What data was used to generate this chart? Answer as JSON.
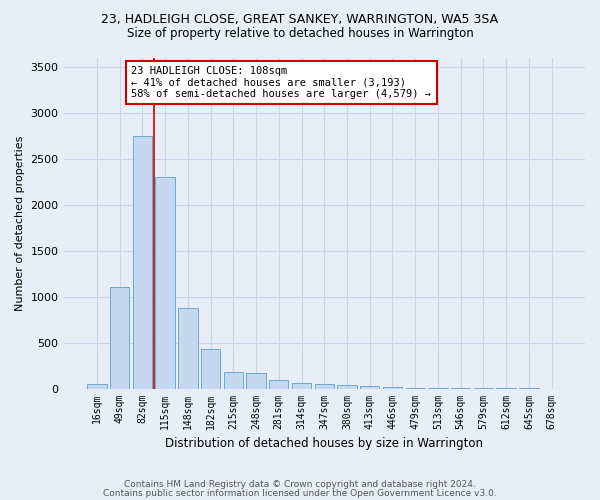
{
  "title": "23, HADLEIGH CLOSE, GREAT SANKEY, WARRINGTON, WA5 3SA",
  "subtitle": "Size of property relative to detached houses in Warrington",
  "xlabel": "Distribution of detached houses by size in Warrington",
  "ylabel": "Number of detached properties",
  "footer_line1": "Contains HM Land Registry data © Crown copyright and database right 2024.",
  "footer_line2": "Contains public sector information licensed under the Open Government Licence v3.0.",
  "bin_labels": [
    "16sqm",
    "49sqm",
    "82sqm",
    "115sqm",
    "148sqm",
    "182sqm",
    "215sqm",
    "248sqm",
    "281sqm",
    "314sqm",
    "347sqm",
    "380sqm",
    "413sqm",
    "446sqm",
    "479sqm",
    "513sqm",
    "546sqm",
    "579sqm",
    "612sqm",
    "645sqm",
    "678sqm"
  ],
  "bar_values": [
    50,
    1100,
    2750,
    2300,
    880,
    430,
    175,
    165,
    90,
    65,
    50,
    40,
    30,
    20,
    10,
    5,
    3,
    2,
    1,
    1,
    0
  ],
  "bar_color": "#c5d8f0",
  "bar_edge_color": "#6fa8d0",
  "grid_color": "#c8d4e8",
  "bg_color": "#e8eef8",
  "vline_x": 2.5,
  "vline_color": "#cc0000",
  "annotation_text": "23 HADLEIGH CLOSE: 108sqm\n← 41% of detached houses are smaller (3,193)\n58% of semi-detached houses are larger (4,579) →",
  "annotation_box_color": "#ffffff",
  "annotation_box_edge": "#cc0000",
  "ylim": [
    0,
    3600
  ],
  "yticks": [
    0,
    500,
    1000,
    1500,
    2000,
    2500,
    3000,
    3500
  ]
}
